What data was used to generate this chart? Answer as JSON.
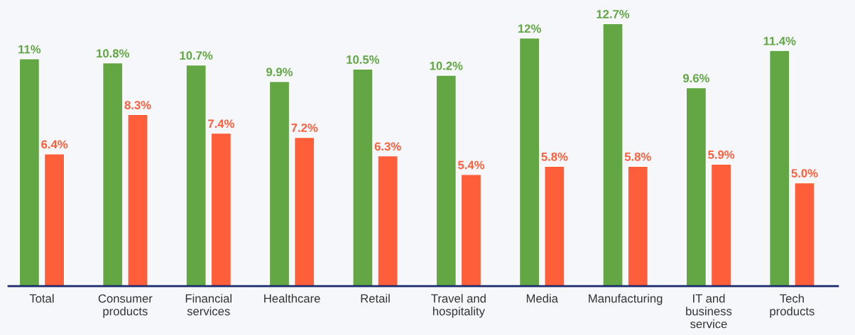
{
  "chart_data": {
    "type": "bar",
    "categories": [
      "Total",
      "Consumer\nproducts",
      "Financial\nservices",
      "Healthcare",
      "Retail",
      "Travel and\nhospitality",
      "Media",
      "Manufacturing",
      "IT and\nbusiness\nservice",
      "Tech\nproducts"
    ],
    "series": [
      {
        "color": "#62a744",
        "values": [
          11,
          10.8,
          10.7,
          9.9,
          10.5,
          10.2,
          12,
          12.7,
          9.6,
          11.4
        ],
        "value_labels": [
          "11%",
          "10.8%",
          "10.7%",
          "9.9%",
          "10.5%",
          "10.2%",
          "12%",
          "12.7%",
          "9.6%",
          "11.4%"
        ]
      },
      {
        "color": "#ff5e3a",
        "values": [
          6.4,
          8.3,
          7.4,
          7.2,
          6.3,
          5.4,
          5.8,
          5.8,
          5.9,
          5.0
        ],
        "value_labels": [
          "6.4%",
          "8.3%",
          "7.4%",
          "7.2%",
          "6.3%",
          "5.4%",
          "5.8%",
          "5.8%",
          "5.9%",
          "5.0%"
        ]
      }
    ],
    "grid": false,
    "legend": false
  }
}
